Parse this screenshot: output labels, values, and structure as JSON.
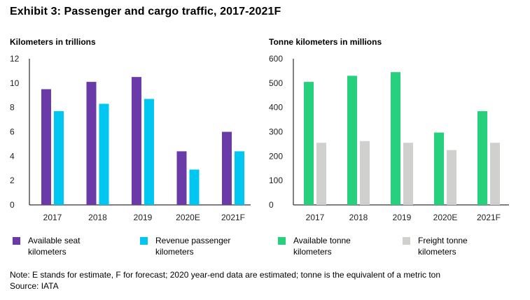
{
  "title": "Exhibit 3: Passenger and cargo traffic, 2017-2021F",
  "chart_data": [
    {
      "type": "bar",
      "title": "Kilometers in trillions",
      "categories": [
        "2017",
        "2018",
        "2019",
        "2020E",
        "2021F"
      ],
      "ylim": [
        0,
        12
      ],
      "yticks": [
        0,
        2,
        4,
        6,
        8,
        10,
        12
      ],
      "series": [
        {
          "name": "Available seat kilometers",
          "color": "#6a3aa8",
          "values": [
            9.5,
            10.1,
            10.5,
            4.4,
            6.0
          ]
        },
        {
          "name": "Revenue passenger kilometers",
          "color": "#00c6f2",
          "values": [
            7.7,
            8.3,
            8.7,
            2.9,
            4.4
          ]
        }
      ]
    },
    {
      "type": "bar",
      "title": "Tonne kilometers in millions",
      "categories": [
        "2017",
        "2018",
        "2019",
        "2020E",
        "2021F"
      ],
      "ylim": [
        0,
        600
      ],
      "yticks": [
        0,
        100,
        200,
        300,
        400,
        500,
        600
      ],
      "series": [
        {
          "name": "Available tonne kilometers",
          "color": "#26d07c",
          "values": [
            505,
            530,
            545,
            297,
            385
          ]
        },
        {
          "name": "Freight tonne kilometers",
          "color": "#d0d0ce",
          "values": [
            255,
            262,
            255,
            225,
            255
          ]
        }
      ]
    }
  ],
  "legend": {
    "left": [
      {
        "line1": "Available seat",
        "line2": "kilometers",
        "color": "#6a3aa8"
      },
      {
        "line1": "Revenue passenger",
        "line2": "kilometers",
        "color": "#00c6f2"
      }
    ],
    "right": [
      {
        "line1": "Available tonne",
        "line2": "kilometers",
        "color": "#26d07c"
      },
      {
        "line1": "Freight tonne",
        "line2": "kilometers",
        "color": "#d0d0ce"
      }
    ]
  },
  "note": "Note: E stands for estimate, F for forecast; 2020 year-end data are estimated; tonne is the equivalent of a metric ton",
  "source": "Source: IATA"
}
